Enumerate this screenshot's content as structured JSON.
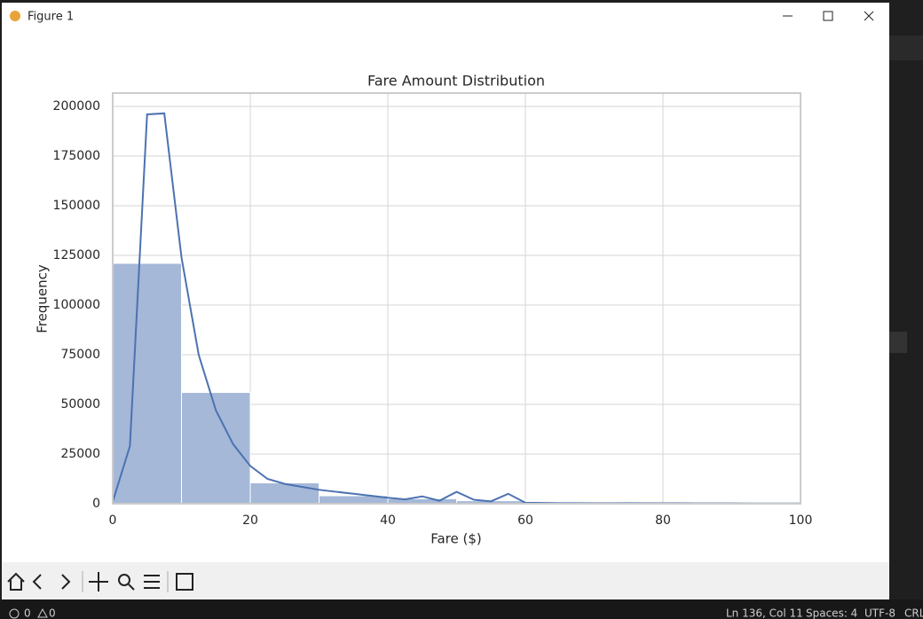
{
  "window": {
    "title": "Figure 1"
  },
  "chart_data": {
    "type": "histogram",
    "title": "Fare Amount Distribution",
    "x_label": "Fare ($)",
    "y_label": "Frequency",
    "bins": [
      0,
      10,
      20,
      30,
      40,
      50,
      60,
      70,
      80,
      90,
      100
    ],
    "values": [
      121000,
      56000,
      10500,
      4000,
      2500,
      1500,
      300,
      200,
      150,
      100
    ],
    "color": "#a5b8d8",
    "kde": {
      "color": "#4c72b0",
      "x": [
        0,
        2.5,
        5,
        7.5,
        10,
        12.5,
        15,
        17.5,
        20,
        22.5,
        25,
        27.5,
        30,
        32.5,
        35,
        37.5,
        40,
        42.5,
        45,
        47.5,
        50,
        52.5,
        55,
        57.5,
        60,
        62.5,
        65,
        67.5,
        70,
        72.5,
        75,
        77.5,
        80,
        82.5,
        85,
        87.5,
        90,
        92.5,
        95,
        97.5,
        100
      ],
      "values": [
        1000,
        29000,
        196000,
        196500,
        124000,
        75000,
        47000,
        30000,
        19000,
        12500,
        10000,
        8500,
        7000,
        6000,
        5000,
        4000,
        3000,
        2200,
        3700,
        1500,
        6000,
        2000,
        1200,
        5000,
        500,
        400,
        300,
        300,
        250,
        250,
        300,
        250,
        200,
        200,
        150,
        150,
        150,
        100,
        100,
        100,
        100
      ]
    },
    "xlim": [
      0,
      100
    ],
    "ylim": [
      0,
      206700
    ],
    "xticks": [
      0,
      20,
      40,
      60,
      80,
      100
    ],
    "yticks": [
      0,
      25000,
      50000,
      75000,
      100000,
      125000,
      150000,
      175000,
      200000
    ],
    "grid": true
  },
  "status_bar": {
    "errors": 0,
    "warnings": 0,
    "position": "Ln 136, Col 11",
    "indent": "Spaces: 4",
    "encoding": "UTF-8",
    "eol": "CRL"
  }
}
